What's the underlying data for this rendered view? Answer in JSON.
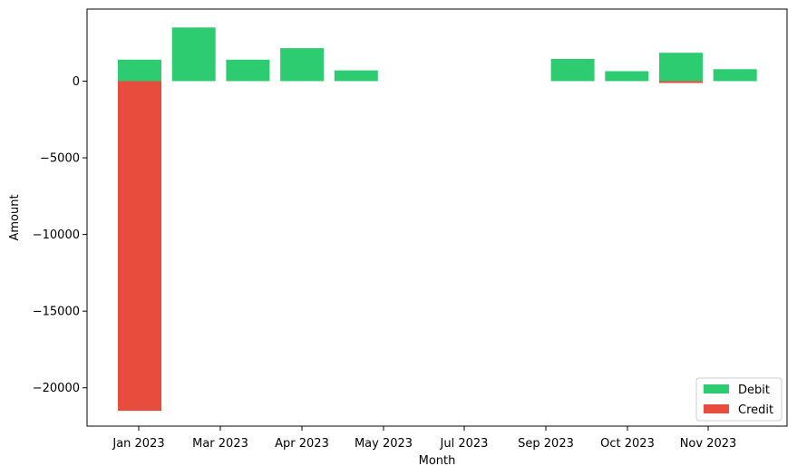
{
  "chart_data": {
    "type": "bar",
    "title": "",
    "xlabel": "Month",
    "ylabel": "Amount",
    "ylim": [
      -22500,
      4700
    ],
    "grid": false,
    "legend_position": "bottom-right",
    "x_ticks": [
      "Jan 2023",
      "Mar 2023",
      "Apr 2023",
      "May 2023",
      "Jul 2023",
      "Sep 2023",
      "Oct 2023",
      "Nov 2023"
    ],
    "y_ticks": [
      0,
      -5000,
      -10000,
      -15000,
      -20000
    ],
    "y_tick_labels": [
      "0",
      "−5000",
      "−10000",
      "−15000",
      "−20000"
    ],
    "bars": [
      {
        "debit": 1400,
        "credit": -21500
      },
      {
        "debit": 3500,
        "credit": 0
      },
      {
        "debit": 1400,
        "credit": 0
      },
      {
        "debit": 2150,
        "credit": 0
      },
      {
        "debit": 700,
        "credit": 0
      },
      {
        "debit": 1450,
        "credit": 0
      },
      {
        "debit": 650,
        "credit": 0
      },
      {
        "debit": 1850,
        "credit": -120
      },
      {
        "debit": 780,
        "credit": 0
      }
    ],
    "bar_x_index": [
      0,
      1,
      2,
      3,
      4,
      8,
      9,
      10,
      11
    ],
    "series": [
      {
        "name": "Debit",
        "color": "#2ecc71"
      },
      {
        "name": "Credit",
        "color": "#e74c3c"
      }
    ]
  }
}
